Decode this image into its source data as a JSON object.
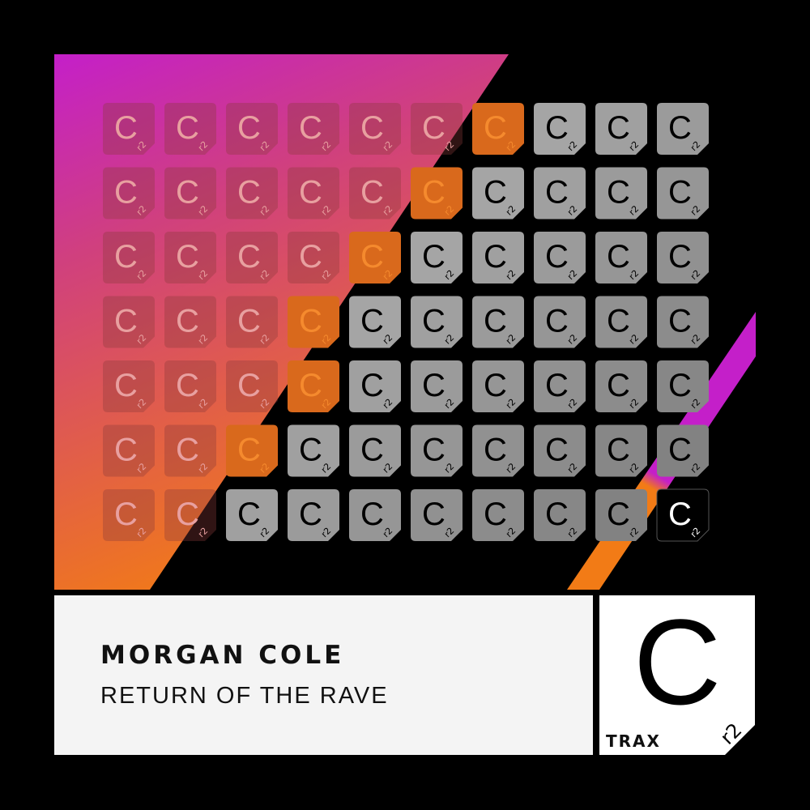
{
  "release": {
    "artist": "MORGAN COLE",
    "title": "RETURN OF THE RAVE"
  },
  "label": {
    "logo_letter": "C",
    "logo_sub": "r2",
    "logo_word": "TRAX"
  },
  "colors": {
    "magenta": "#c41fc9",
    "orange": "#f27b16",
    "background": "#000000",
    "panel": "#f4f4f4"
  },
  "tile_grid": [
    "tttttto...",
    "ttttto....",
    "tttto.....",
    "ttto......",
    "ttto......",
    "tto.......",
    "tt.......k"
  ]
}
